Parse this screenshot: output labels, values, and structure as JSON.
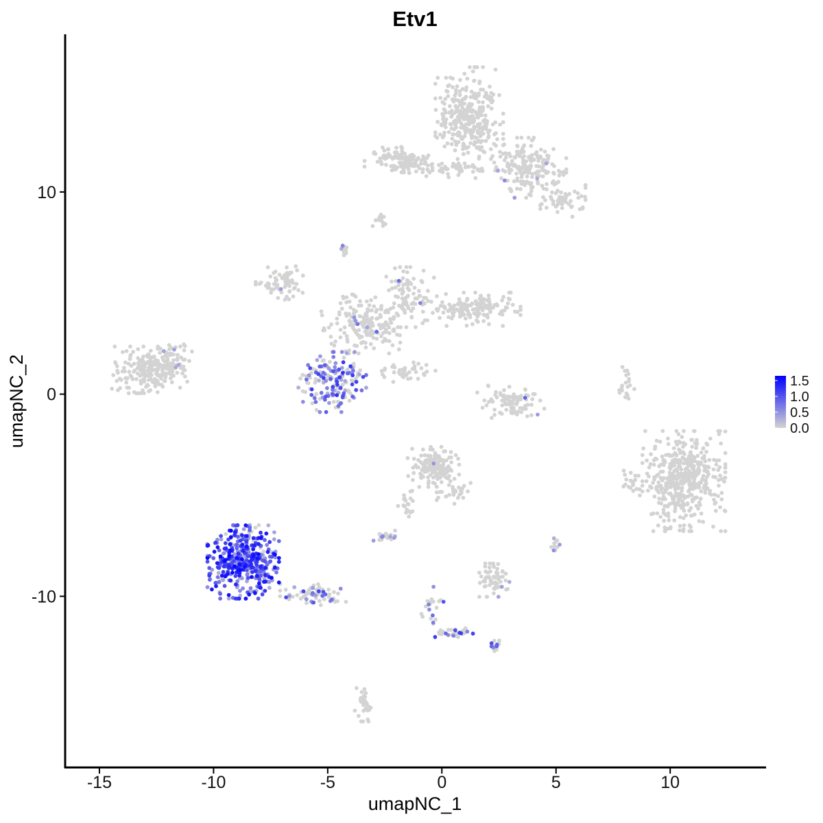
{
  "chart_data": {
    "type": "scatter",
    "title": "Etv1",
    "xlabel": "umapNC_1",
    "ylabel": "umapNC_2",
    "xlim": [
      -16.5,
      14.2
    ],
    "ylim": [
      -18.5,
      17.8
    ],
    "x_ticks": [
      -15,
      -10,
      -5,
      0,
      5,
      10
    ],
    "x_tick_labels": [
      "-15",
      "-10",
      "-5",
      "0",
      "5",
      "10"
    ],
    "y_ticks": [
      -10,
      0,
      10
    ],
    "y_tick_labels": [
      "-10",
      "0",
      "10"
    ],
    "grid": false,
    "legend_placement": "right",
    "color_scale": {
      "low": "#d3d3d3",
      "high": "#0000ff",
      "min": 0,
      "max": 1.65,
      "breaks": [
        0.0,
        0.5,
        1.0,
        1.5
      ],
      "labels": [
        "0.0",
        "0.5",
        "1.0",
        "1.5"
      ]
    },
    "clusters": [
      {
        "cx": 1.2,
        "cy": 13.7,
        "sx": 0.9,
        "sy": 1.5,
        "n": 320,
        "expr_frac": 0.01,
        "expr_max": 0.6
      },
      {
        "cx": 3.8,
        "cy": 11.2,
        "sx": 1.0,
        "sy": 0.9,
        "n": 180,
        "expr_frac": 0.02,
        "expr_max": 0.8
      },
      {
        "cx": 5.3,
        "cy": 9.6,
        "sx": 0.6,
        "sy": 0.5,
        "n": 60,
        "expr_frac": 0.0,
        "expr_max": 0.0
      },
      {
        "cx": -1.9,
        "cy": 11.6,
        "sx": 0.9,
        "sy": 0.4,
        "n": 110,
        "expr_frac": 0.0,
        "expr_max": 0.0
      },
      {
        "cx": 0.5,
        "cy": 11.1,
        "sx": 1.4,
        "sy": 0.25,
        "n": 50,
        "expr_frac": 0.0,
        "expr_max": 0.0
      },
      {
        "cx": -2.7,
        "cy": 8.6,
        "sx": 0.2,
        "sy": 0.3,
        "n": 14,
        "expr_frac": 0.0,
        "expr_max": 0.0
      },
      {
        "cx": -4.3,
        "cy": 7.2,
        "sx": 0.2,
        "sy": 0.2,
        "n": 10,
        "expr_frac": 0.2,
        "expr_max": 0.7
      },
      {
        "cx": -7.0,
        "cy": 5.5,
        "sx": 0.7,
        "sy": 0.5,
        "n": 70,
        "expr_frac": 0.03,
        "expr_max": 0.6
      },
      {
        "cx": -3.3,
        "cy": 3.5,
        "sx": 1.2,
        "sy": 0.9,
        "n": 190,
        "expr_frac": 0.04,
        "expr_max": 0.9
      },
      {
        "cx": -1.5,
        "cy": 4.8,
        "sx": 0.7,
        "sy": 0.9,
        "n": 80,
        "expr_frac": 0.03,
        "expr_max": 0.8
      },
      {
        "cx": 1.3,
        "cy": 4.2,
        "sx": 1.3,
        "sy": 0.5,
        "n": 150,
        "expr_frac": 0.0,
        "expr_max": 0.0
      },
      {
        "cx": -1.6,
        "cy": 1.1,
        "sx": 0.8,
        "sy": 0.3,
        "n": 40,
        "expr_frac": 0.0,
        "expr_max": 0.0
      },
      {
        "cx": -4.8,
        "cy": 0.6,
        "sx": 0.9,
        "sy": 0.9,
        "n": 170,
        "expr_frac": 0.55,
        "expr_max": 1.25
      },
      {
        "cx": -12.8,
        "cy": 1.2,
        "sx": 1.0,
        "sy": 0.7,
        "n": 230,
        "expr_frac": 0.0,
        "expr_max": 0.0
      },
      {
        "cx": -11.6,
        "cy": 1.7,
        "sx": 0.4,
        "sy": 0.5,
        "n": 40,
        "expr_frac": 0.05,
        "expr_max": 0.5
      },
      {
        "cx": 3.0,
        "cy": -0.4,
        "sx": 0.9,
        "sy": 0.5,
        "n": 90,
        "expr_frac": 0.02,
        "expr_max": 0.9
      },
      {
        "cx": 8.1,
        "cy": 0.4,
        "sx": 0.2,
        "sy": 0.6,
        "n": 20,
        "expr_frac": 0.0,
        "expr_max": 0.0
      },
      {
        "cx": 10.6,
        "cy": -4.3,
        "sx": 1.1,
        "sy": 1.5,
        "n": 470,
        "expr_frac": 0.0,
        "expr_max": 0.0
      },
      {
        "cx": 8.3,
        "cy": -4.4,
        "sx": 0.25,
        "sy": 0.5,
        "n": 20,
        "expr_frac": 0.0,
        "expr_max": 0.0
      },
      {
        "cx": -0.4,
        "cy": -3.6,
        "sx": 0.7,
        "sy": 0.6,
        "n": 150,
        "expr_frac": 0.01,
        "expr_max": 0.5
      },
      {
        "cx": 0.6,
        "cy": -4.9,
        "sx": 0.5,
        "sy": 0.4,
        "n": 30,
        "expr_frac": 0.0,
        "expr_max": 0.0
      },
      {
        "cx": -1.6,
        "cy": -5.5,
        "sx": 0.3,
        "sy": 0.5,
        "n": 20,
        "expr_frac": 0.0,
        "expr_max": 0.0
      },
      {
        "cx": -2.5,
        "cy": -7.0,
        "sx": 0.3,
        "sy": 0.15,
        "n": 25,
        "expr_frac": 0.1,
        "expr_max": 0.7
      },
      {
        "cx": 2.3,
        "cy": -9.2,
        "sx": 0.4,
        "sy": 0.5,
        "n": 60,
        "expr_frac": 0.05,
        "expr_max": 0.7
      },
      {
        "cx": 5.0,
        "cy": -7.4,
        "sx": 0.15,
        "sy": 0.2,
        "n": 10,
        "expr_frac": 0.2,
        "expr_max": 0.6
      },
      {
        "cx": -8.7,
        "cy": -8.3,
        "sx": 0.95,
        "sy": 1.1,
        "n": 440,
        "expr_frac": 0.9,
        "expr_max": 1.6
      },
      {
        "cx": -5.6,
        "cy": -9.9,
        "sx": 0.9,
        "sy": 0.35,
        "n": 70,
        "expr_frac": 0.2,
        "expr_max": 1.1
      },
      {
        "cx": -3.4,
        "cy": -15.2,
        "sx": 0.25,
        "sy": 0.6,
        "n": 35,
        "expr_frac": 0.03,
        "expr_max": 0.8
      },
      {
        "cx": 0.6,
        "cy": -11.8,
        "sx": 0.7,
        "sy": 0.15,
        "n": 30,
        "expr_frac": 0.35,
        "expr_max": 1.2
      },
      {
        "cx": 2.3,
        "cy": -12.4,
        "sx": 0.3,
        "sy": 0.2,
        "n": 14,
        "expr_frac": 0.5,
        "expr_max": 1.3
      },
      {
        "cx": -0.4,
        "cy": -10.6,
        "sx": 0.3,
        "sy": 0.7,
        "n": 20,
        "expr_frac": 0.3,
        "expr_max": 1.0
      }
    ]
  }
}
